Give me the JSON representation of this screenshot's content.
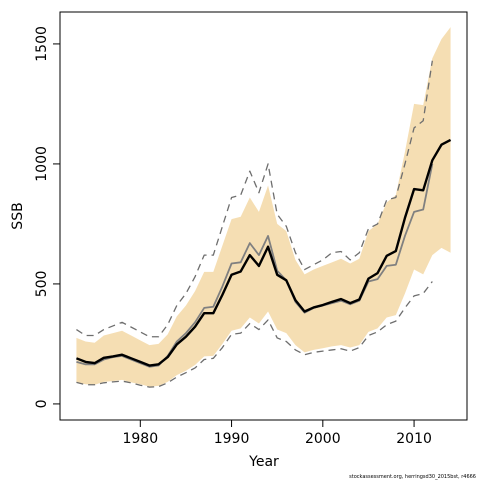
{
  "chart_data": {
    "type": "line",
    "xlabel": "Year",
    "ylabel": "SSB",
    "footnote": "stockassessment.org, herringsd30_2015bst, r4666",
    "x": [
      1973,
      1974,
      1975,
      1976,
      1977,
      1978,
      1979,
      1980,
      1981,
      1982,
      1983,
      1984,
      1985,
      1986,
      1987,
      1988,
      1989,
      1990,
      1991,
      1992,
      1993,
      1994,
      1995,
      1996,
      1997,
      1998,
      1999,
      2000,
      2001,
      2002,
      2003,
      2004,
      2005,
      2006,
      2007,
      2008,
      2009,
      2010,
      2011,
      2012,
      2013,
      2014
    ],
    "xlim": [
      1971.2,
      2015.8
    ],
    "xticks": [
      1980,
      1990,
      2000,
      2010
    ],
    "ylim": [
      -67,
      1633
    ],
    "yticks": [
      0,
      500,
      1000,
      1500
    ],
    "band": {
      "color": "#f5deb3",
      "lower": [
        90,
        82,
        80,
        92,
        95,
        100,
        90,
        82,
        72,
        75,
        92,
        120,
        138,
        162,
        198,
        200,
        250,
        305,
        315,
        360,
        335,
        385,
        310,
        295,
        245,
        215,
        225,
        232,
        240,
        245,
        235,
        245,
        300,
        315,
        360,
        370,
        460,
        560,
        540,
        620,
        650,
        630
      ],
      "upper": [
        275,
        260,
        255,
        285,
        295,
        305,
        285,
        265,
        245,
        250,
        290,
        365,
        410,
        470,
        550,
        550,
        660,
        770,
        780,
        860,
        800,
        910,
        750,
        720,
        600,
        540,
        560,
        575,
        590,
        605,
        585,
        605,
        720,
        750,
        840,
        870,
        1050,
        1250,
        1245,
        1440,
        1520,
        1570
      ]
    },
    "series": [
      {
        "color": "#6e6e6e",
        "dash": true,
        "width": 1.3,
        "values": [
          310,
          285,
          285,
          310,
          325,
          340,
          320,
          300,
          280,
          280,
          330,
          410,
          460,
          530,
          620,
          620,
          740,
          860,
          870,
          970,
          880,
          1000,
          790,
          740,
          630,
          560,
          580,
          600,
          630,
          635,
          600,
          630,
          730,
          750,
          850,
          860,
          1000,
          1150,
          1180,
          1430,
          null,
          null
        ]
      },
      {
        "color": "#6e6e6e",
        "dash": true,
        "width": 1.3,
        "values": [
          90,
          80,
          80,
          88,
          92,
          95,
          88,
          78,
          70,
          72,
          88,
          112,
          130,
          150,
          185,
          190,
          235,
          290,
          295,
          335,
          310,
          350,
          275,
          260,
          225,
          205,
          215,
          220,
          225,
          230,
          220,
          235,
          285,
          300,
          330,
          345,
          400,
          450,
          460,
          510,
          null,
          null
        ]
      },
      {
        "color": "#808080",
        "dash": false,
        "width": 1.8,
        "values": [
          175,
          165,
          165,
          185,
          195,
          200,
          185,
          170,
          155,
          160,
          200,
          260,
          295,
          340,
          400,
          405,
          490,
          585,
          590,
          670,
          620,
          700,
          555,
          515,
          425,
          380,
          400,
          410,
          420,
          430,
          415,
          430,
          510,
          520,
          575,
          580,
          700,
          800,
          810,
          1000,
          null,
          null
        ]
      },
      {
        "color": "#000000",
        "dash": false,
        "width": 2.4,
        "values": [
          190,
          175,
          170,
          192,
          198,
          205,
          190,
          175,
          160,
          165,
          195,
          248,
          280,
          322,
          378,
          378,
          455,
          538,
          552,
          620,
          575,
          655,
          538,
          515,
          432,
          385,
          402,
          412,
          425,
          437,
          420,
          435,
          522,
          545,
          617,
          637,
          775,
          895,
          890,
          1015,
          1080,
          1100
        ]
      }
    ]
  }
}
